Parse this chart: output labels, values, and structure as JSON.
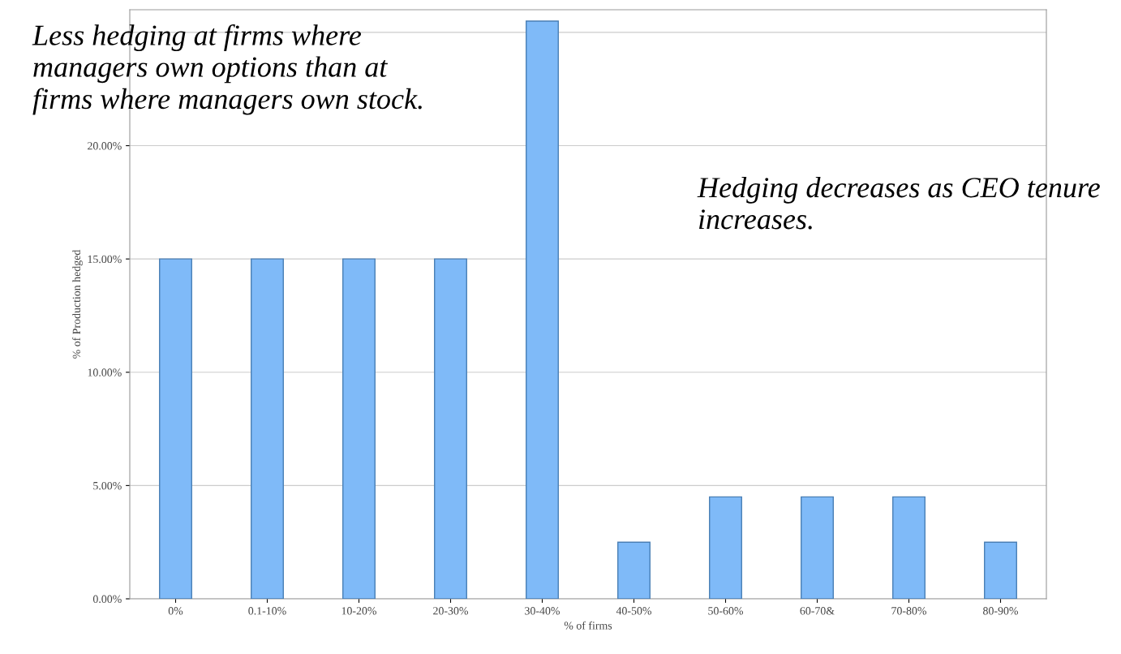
{
  "chart_data": {
    "type": "bar",
    "categories": [
      "0%",
      "0.1-10%",
      "10-20%",
      "20-30%",
      "30-40%",
      "40-50%",
      "50-60%",
      "60-70&",
      "70-80%",
      "80-90%"
    ],
    "values": [
      15,
      15,
      15,
      15,
      25.5,
      2.5,
      4.5,
      4.5,
      4.5,
      2.5
    ],
    "color": "#7fbaf8",
    "xlabel": "% of firms",
    "ylabel": "% of Production hedged",
    "ylim": [
      0,
      26
    ],
    "yticks": [
      {
        "value": 0,
        "label": "0.00%"
      },
      {
        "value": 5,
        "label": "5.00%"
      },
      {
        "value": 10,
        "label": "10.00%"
      },
      {
        "value": 15,
        "label": "15.00%"
      },
      {
        "value": 20,
        "label": "20.00%"
      },
      {
        "value": 25,
        "label": null
      }
    ],
    "grid": "y",
    "legend": false,
    "annotations": [
      "Less hedging at firms where\nmanagers own options than at\nfirms where managers own stock.",
      "Hedging decreases as CEO tenure\nincreases."
    ]
  }
}
